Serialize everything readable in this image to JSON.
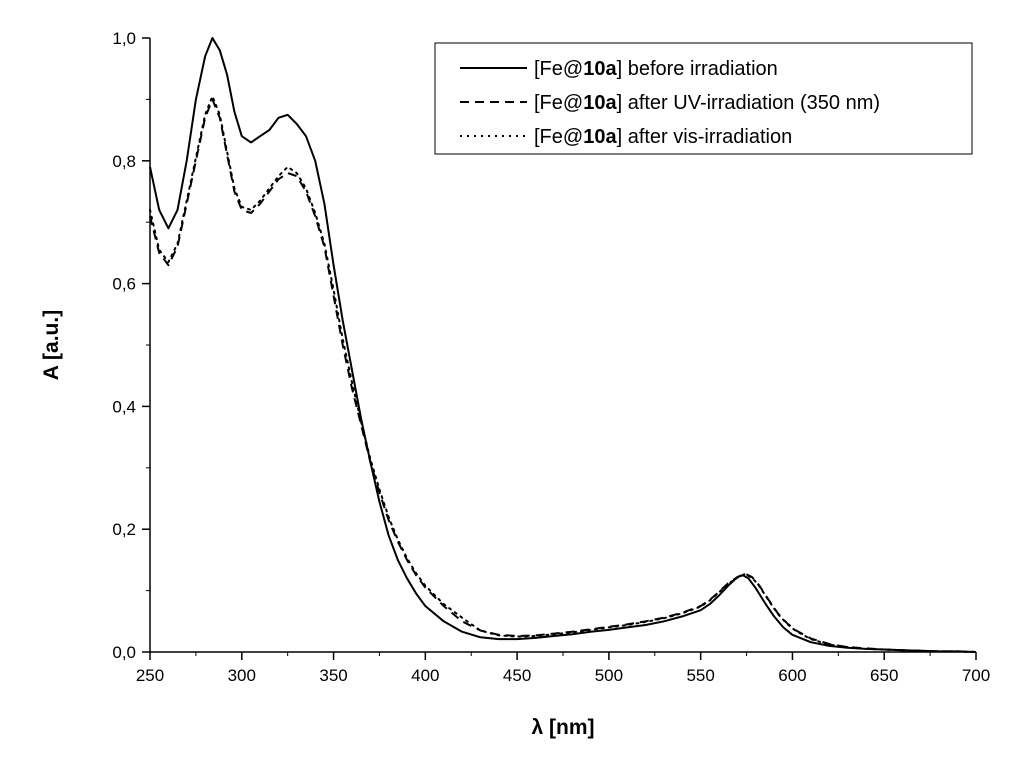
{
  "chart_data": {
    "type": "line",
    "title": "",
    "xlabel": "λ [nm]",
    "ylabel": "A [a.u.]",
    "xlim": [
      250,
      700
    ],
    "ylim": [
      0.0,
      1.0
    ],
    "x_ticks": [
      250,
      300,
      350,
      400,
      450,
      500,
      550,
      600,
      650,
      700
    ],
    "x_tick_labels": [
      "250",
      "300",
      "350",
      "400",
      "450",
      "500",
      "550",
      "600",
      "650",
      "700"
    ],
    "y_ticks": [
      0.0,
      0.2,
      0.4,
      0.6,
      0.8,
      1.0
    ],
    "y_tick_labels": [
      "0,0",
      "0,2",
      "0,4",
      "0,6",
      "0,8",
      "1,0"
    ],
    "grid": false,
    "legend_position": "top-right",
    "series": [
      {
        "name": "[Fe@10a] before irradiation",
        "legend": {
          "prefix": "[Fe@",
          "bold": "10a",
          "suffix": "] before irradiation"
        },
        "style": "solid",
        "x": [
          250,
          255,
          260,
          265,
          270,
          275,
          280,
          284,
          288,
          292,
          296,
          300,
          305,
          310,
          315,
          320,
          325,
          330,
          335,
          340,
          345,
          350,
          355,
          360,
          365,
          370,
          375,
          380,
          385,
          390,
          395,
          400,
          410,
          420,
          430,
          440,
          450,
          460,
          470,
          480,
          490,
          500,
          510,
          520,
          530,
          540,
          550,
          555,
          560,
          565,
          570,
          573,
          576,
          580,
          585,
          590,
          595,
          600,
          610,
          620,
          630,
          640,
          650,
          660,
          670,
          680,
          690,
          700
        ],
        "y": [
          0.79,
          0.72,
          0.69,
          0.72,
          0.8,
          0.9,
          0.97,
          1.0,
          0.98,
          0.94,
          0.88,
          0.84,
          0.83,
          0.84,
          0.85,
          0.87,
          0.875,
          0.86,
          0.84,
          0.8,
          0.73,
          0.63,
          0.54,
          0.46,
          0.38,
          0.31,
          0.245,
          0.19,
          0.15,
          0.12,
          0.095,
          0.075,
          0.05,
          0.033,
          0.024,
          0.021,
          0.021,
          0.023,
          0.026,
          0.029,
          0.033,
          0.036,
          0.04,
          0.044,
          0.05,
          0.058,
          0.068,
          0.078,
          0.092,
          0.108,
          0.122,
          0.125,
          0.12,
          0.104,
          0.08,
          0.058,
          0.04,
          0.028,
          0.016,
          0.01,
          0.007,
          0.005,
          0.004,
          0.003,
          0.002,
          0.001,
          0.001,
          0.0
        ]
      },
      {
        "name": "[Fe@10a] after UV-irradiation (350 nm)",
        "legend": {
          "prefix": "[Fe@",
          "bold": "10a",
          "suffix": "] after UV-irradiation (350 nm)"
        },
        "style": "dashed",
        "x": [
          250,
          255,
          260,
          265,
          270,
          275,
          280,
          284,
          288,
          292,
          296,
          300,
          305,
          310,
          315,
          320,
          325,
          330,
          335,
          340,
          345,
          350,
          355,
          360,
          365,
          370,
          375,
          380,
          385,
          390,
          395,
          400,
          410,
          420,
          430,
          440,
          450,
          460,
          470,
          480,
          490,
          500,
          510,
          520,
          530,
          540,
          550,
          555,
          560,
          565,
          570,
          574,
          578,
          582,
          587,
          592,
          597,
          602,
          610,
          620,
          630,
          640,
          650,
          660,
          670,
          680,
          690,
          700
        ],
        "y": [
          0.71,
          0.65,
          0.63,
          0.66,
          0.73,
          0.8,
          0.87,
          0.9,
          0.87,
          0.81,
          0.75,
          0.72,
          0.715,
          0.73,
          0.75,
          0.77,
          0.78,
          0.775,
          0.75,
          0.71,
          0.66,
          0.58,
          0.5,
          0.43,
          0.37,
          0.31,
          0.26,
          0.215,
          0.18,
          0.15,
          0.125,
          0.105,
          0.075,
          0.05,
          0.035,
          0.028,
          0.026,
          0.027,
          0.03,
          0.033,
          0.037,
          0.041,
          0.045,
          0.05,
          0.056,
          0.064,
          0.075,
          0.085,
          0.098,
          0.112,
          0.122,
          0.128,
          0.122,
          0.108,
          0.085,
          0.063,
          0.047,
          0.035,
          0.022,
          0.013,
          0.008,
          0.006,
          0.004,
          0.003,
          0.002,
          0.001,
          0.001,
          0.0
        ]
      },
      {
        "name": "[Fe@10a] after vis-irradiation",
        "legend": {
          "prefix": "[Fe@",
          "bold": "10a",
          "suffix": "] after vis-irradiation"
        },
        "style": "dotted",
        "x": [
          250,
          255,
          260,
          265,
          270,
          275,
          280,
          284,
          288,
          292,
          296,
          300,
          305,
          310,
          315,
          320,
          325,
          330,
          335,
          340,
          345,
          350,
          355,
          360,
          365,
          370,
          375,
          380,
          385,
          390,
          395,
          400,
          410,
          420,
          430,
          440,
          450,
          460,
          470,
          480,
          490,
          500,
          510,
          520,
          530,
          540,
          550,
          555,
          560,
          565,
          570,
          574,
          578,
          582,
          587,
          592,
          597,
          602,
          610,
          620,
          630,
          640,
          650,
          660,
          670,
          680,
          690,
          700
        ],
        "y": [
          0.72,
          0.655,
          0.635,
          0.665,
          0.735,
          0.805,
          0.875,
          0.905,
          0.875,
          0.815,
          0.755,
          0.725,
          0.72,
          0.735,
          0.755,
          0.775,
          0.79,
          0.78,
          0.755,
          0.715,
          0.665,
          0.59,
          0.51,
          0.44,
          0.375,
          0.315,
          0.265,
          0.22,
          0.183,
          0.153,
          0.128,
          0.108,
          0.078,
          0.056,
          0.035,
          0.027,
          0.025,
          0.026,
          0.029,
          0.032,
          0.036,
          0.04,
          0.044,
          0.049,
          0.055,
          0.063,
          0.074,
          0.084,
          0.097,
          0.111,
          0.121,
          0.127,
          0.121,
          0.107,
          0.084,
          0.062,
          0.046,
          0.034,
          0.021,
          0.012,
          0.008,
          0.005,
          0.004,
          0.003,
          0.002,
          0.001,
          0.001,
          0.0
        ]
      }
    ]
  }
}
